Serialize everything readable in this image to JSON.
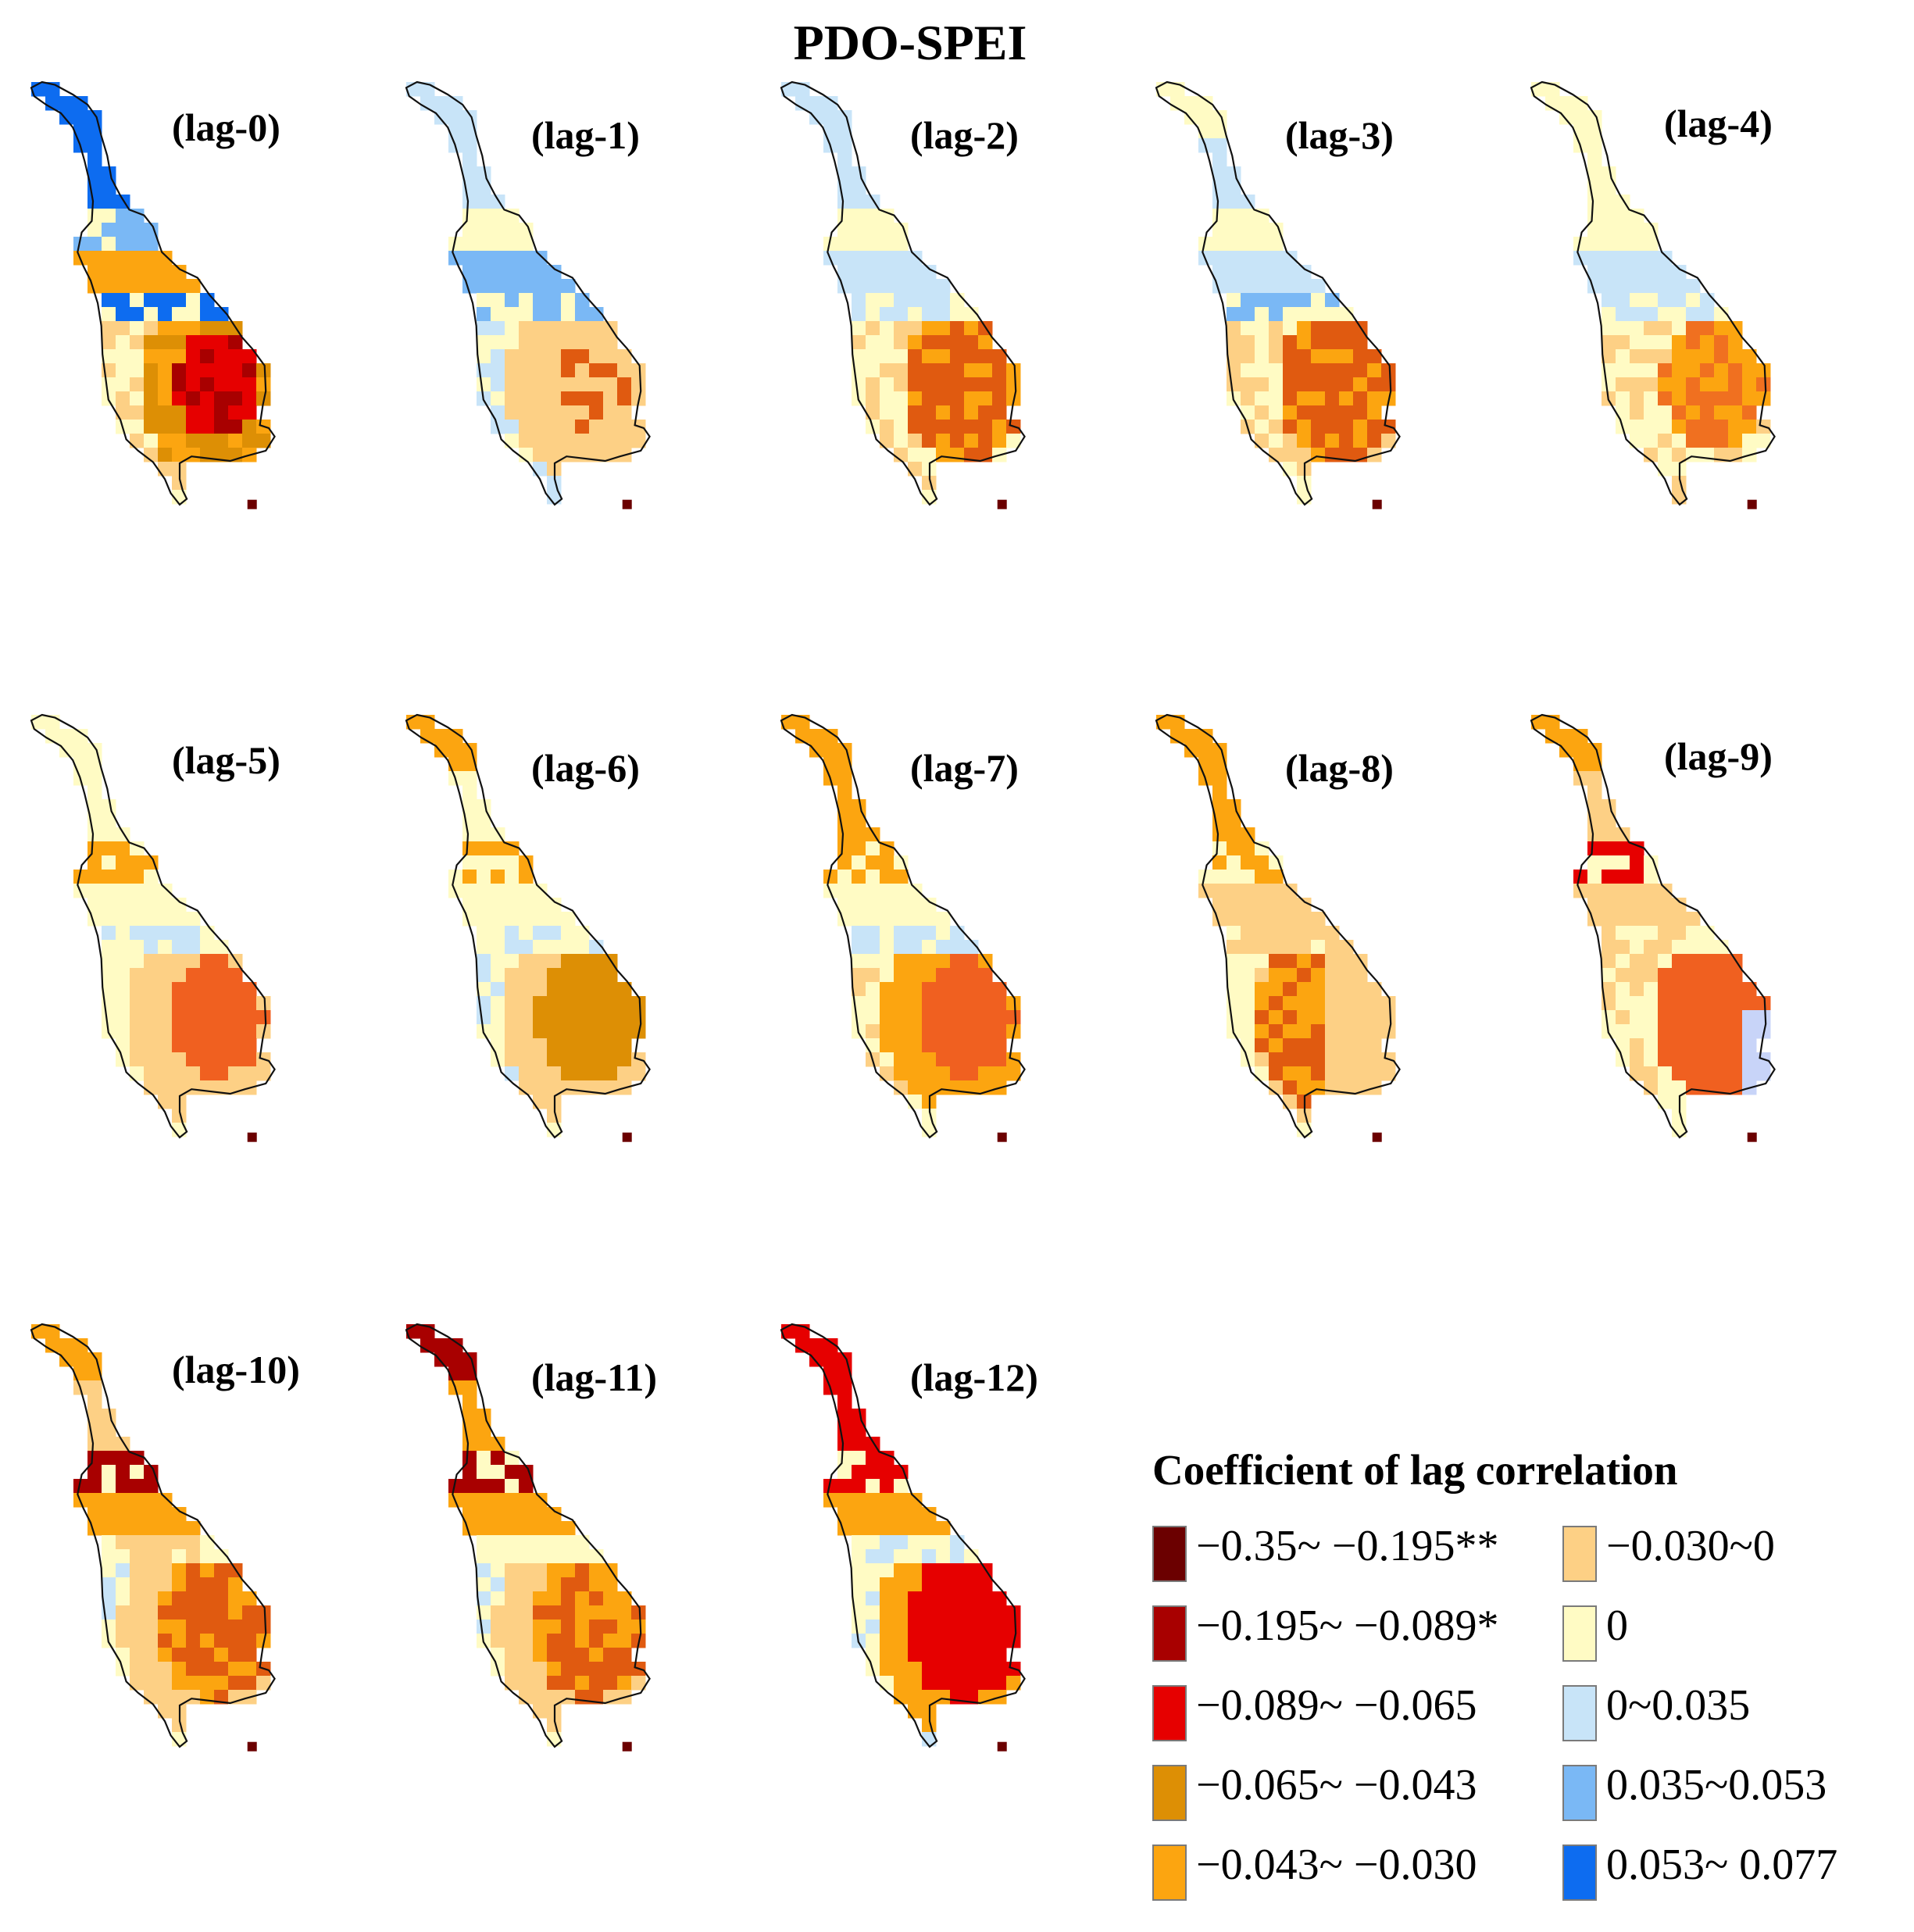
{
  "title": "PDO-SPEI",
  "legend": {
    "title": "Coefficient of lag correlation",
    "items": [
      {
        "label": "−0.35~ −0.195**",
        "color": "#6b0000"
      },
      {
        "label": "−0.195~ −0.089*",
        "color": "#a80000"
      },
      {
        "label": "−0.089~ −0.065",
        "color": "#e60000"
      },
      {
        "label": "−0.065~ −0.043",
        "color": "#dd8f05"
      },
      {
        "label": "−0.043~ −0.030",
        "color": "#fca510"
      },
      {
        "label": "−0.030~0",
        "color": "#fdd085"
      },
      {
        "label": "0",
        "color": "#fffbc4"
      },
      {
        "label": "0~0.035",
        "color": "#c8e4f8"
      },
      {
        "label": "0.035~0.053",
        "color": "#7ab8f5"
      },
      {
        "label": "0.053~ 0.077",
        "color": "#0d6cf0"
      }
    ]
  },
  "panels": [
    {
      "label": "(lag-0)",
      "profile": [
        "blue3",
        "blue3",
        "blue2",
        "orange",
        "blue3",
        "mix0"
      ]
    },
    {
      "label": "(lag-1)",
      "profile": [
        "blue1",
        "blue1",
        "yellow",
        "blue2",
        "blue2",
        "mix1"
      ]
    },
    {
      "label": "(lag-2)",
      "profile": [
        "blue1",
        "blue1",
        "yellow",
        "blue1",
        "blue1",
        "mix2"
      ]
    },
    {
      "label": "(lag-3)",
      "profile": [
        "yellow",
        "blue1",
        "yellow",
        "blue1",
        "blue2",
        "mix3"
      ]
    },
    {
      "label": "(lag-4)",
      "profile": [
        "yellow",
        "yellow",
        "yellow",
        "blue1",
        "blue1",
        "mix4"
      ]
    },
    {
      "label": "(lag-5)",
      "profile": [
        "yellow",
        "yellow",
        "orange",
        "yellow",
        "blue1",
        "mix5"
      ]
    },
    {
      "label": "(lag-6)",
      "profile": [
        "orange",
        "yellow",
        "orange",
        "yellow",
        "blue1",
        "mix6"
      ]
    },
    {
      "label": "(lag-7)",
      "profile": [
        "orange",
        "orange",
        "orange",
        "yellow",
        "blue1",
        "mix7"
      ]
    },
    {
      "label": "(lag-8)",
      "profile": [
        "orange",
        "orange",
        "orange",
        "peach",
        "peach",
        "mix8"
      ]
    },
    {
      "label": "(lag-9)",
      "profile": [
        "orange",
        "peach",
        "red",
        "peach",
        "peach",
        "mix9"
      ]
    },
    {
      "label": "(lag-10)",
      "profile": [
        "orange",
        "peach",
        "dred",
        "orange",
        "peach",
        "mix10"
      ]
    },
    {
      "label": "(lag-11)",
      "profile": [
        "dred",
        "orange",
        "dred",
        "orange",
        "yellow",
        "mix11"
      ]
    },
    {
      "label": "(lag-12)",
      "profile": [
        "red",
        "red",
        "red",
        "orange",
        "blue1",
        "mix12"
      ]
    }
  ]
}
